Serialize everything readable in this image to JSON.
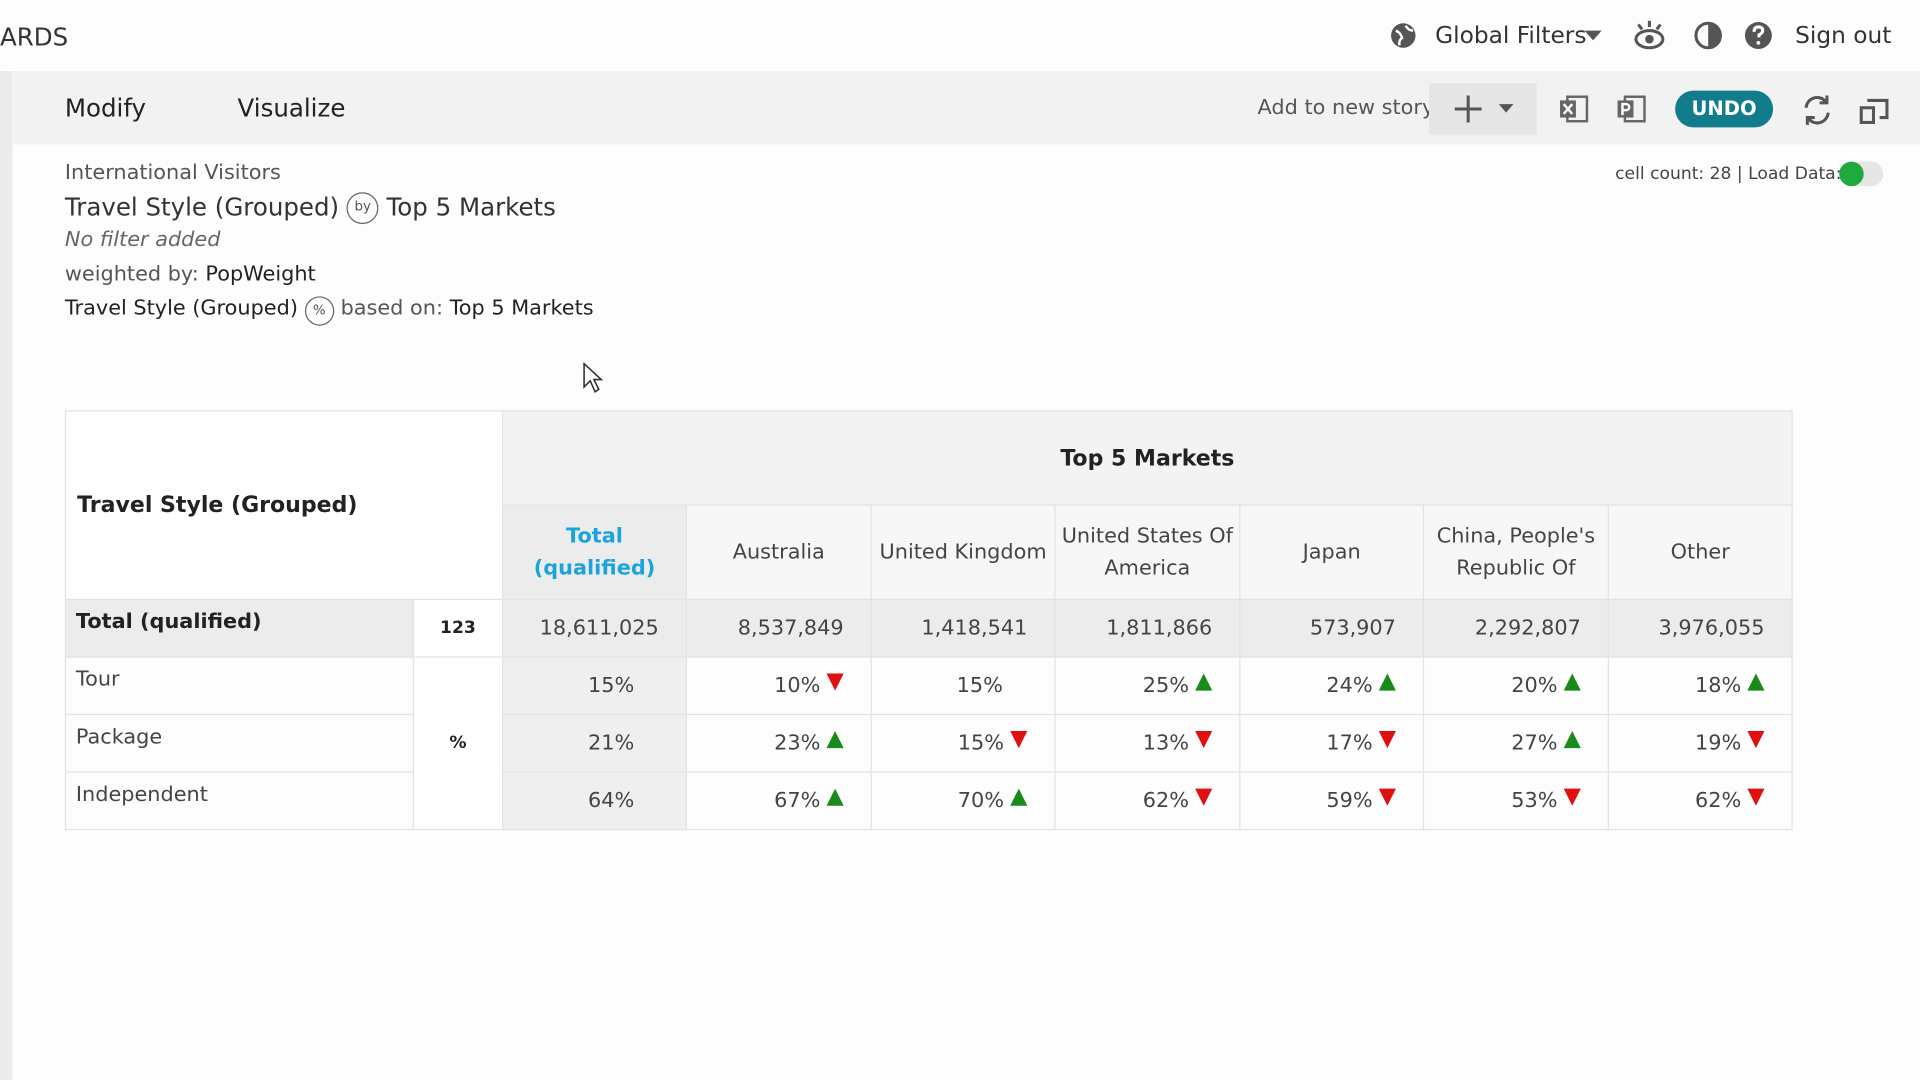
{
  "header": {
    "brand": "ARDS",
    "global_filters": "Global Filters",
    "sign_out": "Sign out"
  },
  "toolbar": {
    "tabs": [
      "Modify",
      "Visualize"
    ],
    "add_to_story": "Add to new story",
    "undo": "UNDO"
  },
  "info": {
    "subtitle": "International Visitors",
    "title_left": "Travel Style (Grouped)",
    "by_icon": "by",
    "title_right": "Top 5 Markets",
    "filter": "No filter added",
    "weighted_label": "weighted by:",
    "weighted_value": "PopWeight",
    "pct_left": "Travel Style (Grouped)",
    "pct_icon": "%",
    "based_label": "based on:",
    "based_value": "Top 5 Markets",
    "cell_count": "cell count: 28",
    "load_data": "Load Data:"
  },
  "table": {
    "row_header": "Travel Style (Grouped)",
    "column_group": "Top 5 Markets",
    "columns": [
      "Total (qualified)",
      "Australia",
      "United Kingdom",
      "United States Of America",
      "Japan",
      "China, People's Republic Of",
      "Other"
    ],
    "total_row": {
      "label": "Total (qualified)",
      "base": "123",
      "values": [
        "18,611,025",
        "8,537,849",
        "1,418,541",
        "1,811,866",
        "573,907",
        "2,292,807",
        "3,976,055"
      ]
    },
    "stat_label": "%",
    "rows": [
      {
        "label": "Tour",
        "values": [
          "15%",
          "10%",
          "15%",
          "25%",
          "24%",
          "20%",
          "18%"
        ],
        "trends": [
          null,
          "down",
          null,
          "up",
          "up",
          "up",
          "up"
        ]
      },
      {
        "label": "Package",
        "values": [
          "21%",
          "23%",
          "15%",
          "13%",
          "17%",
          "27%",
          "19%"
        ],
        "trends": [
          null,
          "up",
          "down",
          "down",
          "down",
          "up",
          "down"
        ]
      },
      {
        "label": "Independent",
        "values": [
          "64%",
          "67%",
          "70%",
          "62%",
          "59%",
          "53%",
          "62%"
        ],
        "trends": [
          null,
          "up",
          "up",
          "down",
          "down",
          "down",
          "down"
        ]
      }
    ]
  }
}
